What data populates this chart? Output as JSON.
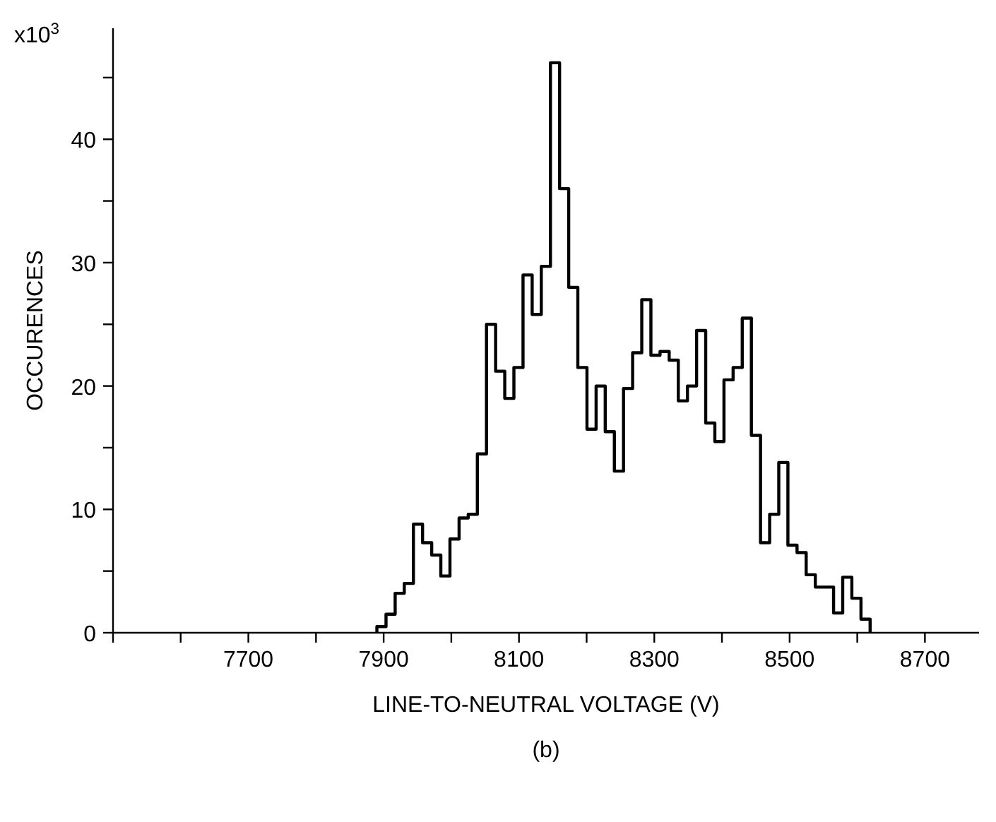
{
  "chart_data": {
    "type": "histogram",
    "xlabel": "LINE-TO-NEUTRAL VOLTAGE (V)",
    "ylabel": "OCCURENCES",
    "annotations": [
      "x10$^{3}$",
      "(b)"
    ],
    "bins": [
      7890,
      7903.5,
      7917,
      7930.5,
      7944,
      7957.5,
      7971,
      7984.5,
      7998,
      8011.5,
      8025,
      8038.5,
      8052,
      8065.5,
      8079,
      8092.5,
      8106,
      8119.5,
      8133,
      8146.5,
      8160,
      8173.5,
      8187,
      8200.5,
      8214,
      8227.5,
      8241,
      8254.5,
      8268,
      8281.5,
      8295,
      8308.5,
      8322,
      8335.5,
      8349,
      8362.5,
      8376,
      8389.5,
      8403,
      8416.5,
      8430,
      8443.5,
      8457,
      8470.5,
      8484,
      8497.5,
      8511,
      8524.5,
      8538,
      8551.5,
      8565,
      8578.5,
      8592,
      8605.5,
      8619
    ],
    "values": [
      0.5,
      1.5,
      3.2,
      4.0,
      8.8,
      7.3,
      6.3,
      4.6,
      7.6,
      9.3,
      9.6,
      14.5,
      25.0,
      21.2,
      19.0,
      21.5,
      29.0,
      25.8,
      29.7,
      46.2,
      36.0,
      28.0,
      21.5,
      16.5,
      20.0,
      16.3,
      13.1,
      19.8,
      22.7,
      27.0,
      22.5,
      22.8,
      22.1,
      18.8,
      20.0,
      24.5,
      17.0,
      15.5,
      20.5,
      21.5,
      25.5,
      16.0,
      7.3,
      9.6,
      13.8,
      7.1,
      6.5,
      4.7,
      3.7,
      3.7,
      1.6,
      4.5,
      2.8,
      1.1
    ],
    "color": "#000000",
    "xlim": [
      7500,
      8780
    ],
    "xticks": [
      {
        "value": 7500,
        "label": null
      },
      {
        "value": 7600,
        "label": null
      },
      7700,
      {
        "value": 7800,
        "label": null
      },
      7900,
      {
        "value": 8000,
        "label": null
      },
      8100,
      {
        "value": 8200,
        "label": null
      },
      8300,
      {
        "value": 8400,
        "label": null
      },
      8500,
      {
        "value": 8600,
        "label": null
      },
      8700
    ],
    "ylim": [
      0,
      49
    ],
    "yticks": [
      0,
      {
        "value": 5,
        "label": null
      },
      10,
      {
        "value": 15,
        "label": null
      },
      20,
      {
        "value": 25,
        "label": null
      },
      30,
      {
        "value": 35,
        "label": null
      },
      40,
      {
        "value": 45,
        "label": null
      }
    ],
    "grid": false
  }
}
